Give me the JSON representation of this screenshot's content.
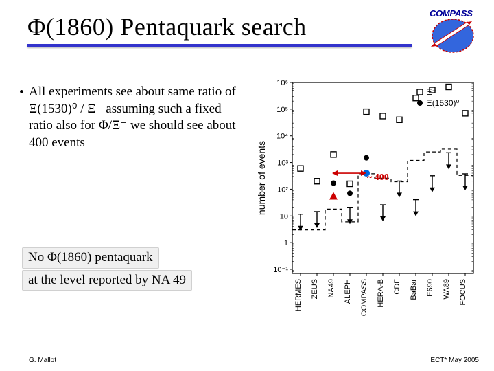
{
  "title": "Φ(1860)  Pentaquark search",
  "compass_text": "COMPASS",
  "bullet": "All experiments see about same ratio of Ξ(1530)⁰ / Ξ⁻ assuming such a fixed ratio also for Φ/Ξ⁻ we should see about 400 events",
  "conclusion_line1": "No Φ(1860) pentaquark",
  "conclusion_line2": "at the level reported by NA 49",
  "footer_left": "G. Mallot",
  "footer_right": "ECT* May 2005",
  "arrow_label": "~ 400",
  "chart": {
    "type": "scatter-log",
    "y_label": "number of events",
    "ylim": [
      0.07,
      1000000
    ],
    "y_ticks": [
      0.1,
      1,
      10,
      100,
      1000,
      10000,
      100000,
      1000000
    ],
    "y_tick_labels": [
      "10⁻¹",
      "1",
      "10",
      "10²",
      "10³",
      "10⁴",
      "10⁵",
      "10⁶"
    ],
    "x_categories": [
      "HERMES",
      "ZEUS",
      "NA49",
      "ALEPH",
      "COMPASS",
      "HERA-B",
      "CDF",
      "BaBar",
      "E690",
      "WA89",
      "FOCUS"
    ],
    "legend": [
      {
        "marker": "square_open",
        "label": "Ξ⁻",
        "color": "#000000"
      },
      {
        "marker": "circle_filled",
        "label": "Ξ(1530)⁰",
        "color": "#000000"
      }
    ],
    "series_square_open": [
      600,
      200,
      2000,
      160,
      80000,
      55000,
      40000,
      260000,
      520000,
      680000,
      70000
    ],
    "series_circle_filled": [
      null,
      null,
      170,
      70,
      1500,
      null,
      null,
      null,
      null,
      null,
      null
    ],
    "upper_limit_arrows": [
      {
        "x_index": 0,
        "y": 4
      },
      {
        "x_index": 1,
        "y": 5
      },
      {
        "x_index": 3,
        "y": 7
      },
      {
        "x_index": 5,
        "y": 9
      },
      {
        "x_index": 6,
        "y": 70
      },
      {
        "x_index": 7,
        "y": 14
      },
      {
        "x_index": 8,
        "y": 110
      },
      {
        "x_index": 9,
        "y": 800
      },
      {
        "x_index": 10,
        "y": 130
      }
    ],
    "na49_point": {
      "x_index": 2,
      "y": 55,
      "marker": "triangle",
      "color": "#cc0000"
    },
    "compass_expected": {
      "x_index": 4,
      "y": 400,
      "marker": "circle_filled",
      "color": "#0066dd"
    },
    "dashed_step": {
      "color": "#000000",
      "y_values": [
        3,
        3,
        18,
        6,
        380,
        260,
        190,
        1200,
        2500,
        3200,
        330
      ]
    },
    "red_arrow": {
      "x_from": 2,
      "x_to": 4,
      "y": 400,
      "color": "#cc0000"
    },
    "background_color": "#ffffff",
    "axis_color": "#000000",
    "font_size_axis": 11,
    "font_size_ylabel": 14
  }
}
